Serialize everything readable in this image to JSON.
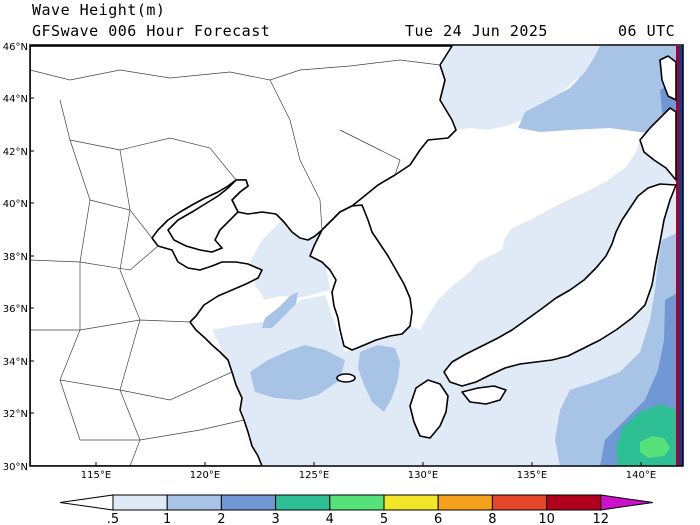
{
  "header": {
    "title": "Wave Height(m)",
    "model": "GFSwave 006 Hour Forecast",
    "date": "Tue 24 Jun 2025",
    "time": "06 UTC"
  },
  "map": {
    "lat_labels": [
      "30°N",
      "32°N",
      "34°N",
      "36°N",
      "38°N",
      "40°N",
      "42°N",
      "44°N",
      "46°N"
    ],
    "lon_labels": [
      "115°E",
      "120°E",
      "125°E",
      "130°E",
      "135°E",
      "140°E"
    ]
  },
  "colorbar": {
    "labels": [
      ".5",
      "1",
      "2",
      "3",
      "4",
      "5",
      "6",
      "8",
      "10",
      "12"
    ],
    "colors": [
      "#dfeaf6",
      "#a7c4e6",
      "#6f98d4",
      "#2fbf94",
      "#55e27a",
      "#f2e52a",
      "#f5a11c",
      "#e64628",
      "#b0001c",
      "#cc10cc"
    ]
  }
}
